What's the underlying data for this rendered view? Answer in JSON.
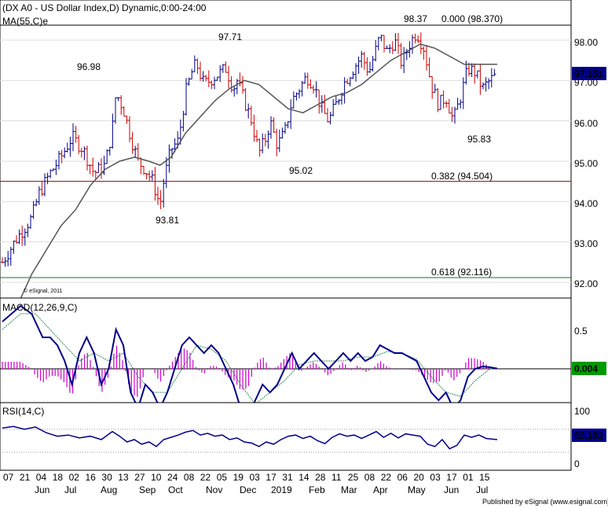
{
  "header": {
    "title": "(DX A0 - US Dollar Index,D) Dynamic,0:00-24:00",
    "ma_label": "MA(55,C)e",
    "esignal_mark": "© eSignal, 2011",
    "publisher": "Published by eSignal (www.esignal.com)"
  },
  "chart_data": [
    {
      "type": "ohlc",
      "title": "(DX A0 - US Dollar Index,D) Dynamic,0:00-24:00",
      "ylim": [
        91.6,
        99.0
      ],
      "yticks": [
        "98.00",
        "97.00",
        "96.00",
        "95.00",
        "94.00",
        "93.00",
        "92.00"
      ],
      "last_price": "97.151",
      "annotations": [
        "96.98",
        "97.71",
        "98.37",
        "95.02",
        "93.81",
        "95.83"
      ],
      "fib_levels": [
        {
          "label": "0.000 (98.370)",
          "value": 98.37,
          "color": "#000000"
        },
        {
          "label": "0.382 (94.504)",
          "value": 94.504,
          "color": "#8b1a1a"
        },
        {
          "label": "0.618 (92.116)",
          "value": 92.116,
          "color": "#1a7a1a"
        }
      ],
      "ma_series": {
        "name": "MA(55,C)e",
        "color": "#555555"
      },
      "price_path": [
        [
          0,
          92.5
        ],
        [
          4,
          93.1
        ],
        [
          8,
          93.6
        ],
        [
          10,
          94.2
        ],
        [
          13,
          94.7
        ],
        [
          16,
          95.1
        ],
        [
          19,
          95.6
        ],
        [
          22,
          95.3
        ],
        [
          25,
          94.7
        ],
        [
          28,
          94.9
        ],
        [
          30,
          95.8
        ],
        [
          31,
          96.7
        ],
        [
          33,
          96.3
        ],
        [
          35,
          95.6
        ],
        [
          37,
          95.0
        ],
        [
          39,
          94.8
        ],
        [
          41,
          94.5
        ],
        [
          42,
          94.2
        ],
        [
          43,
          93.9
        ],
        [
          44,
          94.5
        ],
        [
          46,
          95.3
        ],
        [
          48,
          95.5
        ],
        [
          49,
          96.1
        ],
        [
          50,
          96.7
        ],
        [
          52,
          97.3
        ],
        [
          53,
          97.4
        ],
        [
          55,
          96.9
        ],
        [
          58,
          97.1
        ],
        [
          61,
          97.3
        ],
        [
          63,
          96.8
        ],
        [
          64,
          97.0
        ],
        [
          66,
          96.5
        ],
        [
          68,
          96.0
        ],
        [
          70,
          95.2
        ],
        [
          72,
          95.6
        ],
        [
          73,
          96.0
        ],
        [
          75,
          95.4
        ],
        [
          77,
          95.7
        ],
        [
          79,
          96.5
        ],
        [
          81,
          96.8
        ],
        [
          83,
          97.1
        ],
        [
          85,
          96.9
        ],
        [
          87,
          96.3
        ],
        [
          89,
          96.0
        ],
        [
          91,
          96.4
        ],
        [
          93,
          96.9
        ],
        [
          95,
          97.2
        ],
        [
          98,
          97.6
        ],
        [
          100,
          97.2
        ],
        [
          101,
          97.5
        ],
        [
          103,
          98.1
        ],
        [
          105,
          97.7
        ],
        [
          107,
          98.0
        ],
        [
          109,
          97.4
        ],
        [
          111,
          97.9
        ],
        [
          113,
          98.2
        ],
        [
          115,
          97.8
        ],
        [
          117,
          96.9
        ],
        [
          119,
          96.4
        ],
        [
          121,
          96.6
        ],
        [
          123,
          96.0
        ],
        [
          125,
          96.6
        ],
        [
          127,
          97.3
        ],
        [
          129,
          97.2
        ],
        [
          131,
          96.8
        ],
        [
          133,
          97.0
        ],
        [
          135,
          97.15
        ]
      ],
      "ma_path": [
        [
          5,
          91.6
        ],
        [
          8,
          92.2
        ],
        [
          12,
          92.8
        ],
        [
          16,
          93.4
        ],
        [
          20,
          93.8
        ],
        [
          24,
          94.4
        ],
        [
          28,
          94.8
        ],
        [
          32,
          95.0
        ],
        [
          36,
          95.1
        ],
        [
          40,
          95.0
        ],
        [
          43,
          94.9
        ],
        [
          46,
          95.1
        ],
        [
          50,
          95.7
        ],
        [
          54,
          96.1
        ],
        [
          58,
          96.5
        ],
        [
          62,
          96.8
        ],
        [
          66,
          97.0
        ],
        [
          70,
          96.9
        ],
        [
          74,
          96.6
        ],
        [
          78,
          96.3
        ],
        [
          82,
          96.2
        ],
        [
          86,
          96.4
        ],
        [
          90,
          96.6
        ],
        [
          94,
          96.7
        ],
        [
          98,
          96.9
        ],
        [
          102,
          97.2
        ],
        [
          106,
          97.5
        ],
        [
          110,
          97.7
        ],
        [
          114,
          97.9
        ],
        [
          118,
          97.8
        ],
        [
          122,
          97.6
        ],
        [
          126,
          97.4
        ],
        [
          130,
          97.4
        ],
        [
          135,
          97.4
        ]
      ]
    },
    {
      "type": "line",
      "title": "MACD(12,26,9,C)",
      "ylim": [
        -0.85,
        1.2
      ],
      "yticks": [
        "0.5"
      ],
      "last_value": "0.004",
      "series": [
        {
          "name": "MACD",
          "color": "#00008b"
        },
        {
          "name": "Signal",
          "color": "#2e8b57"
        },
        {
          "name": "Histogram",
          "color": "#cc00cc"
        }
      ],
      "macd_path": [
        [
          0,
          0.6
        ],
        [
          5,
          0.8
        ],
        [
          8,
          0.7
        ],
        [
          11,
          0.4
        ],
        [
          13,
          0.4
        ],
        [
          15,
          0.3
        ],
        [
          17,
          0.1
        ],
        [
          19,
          -0.2
        ],
        [
          21,
          0.2
        ],
        [
          23,
          0.4
        ],
        [
          25,
          0.2
        ],
        [
          27,
          -0.2
        ],
        [
          29,
          0.0
        ],
        [
          31,
          0.5
        ],
        [
          33,
          0.3
        ],
        [
          35,
          -0.3
        ],
        [
          37,
          -0.5
        ],
        [
          39,
          -0.2
        ],
        [
          41,
          -0.3
        ],
        [
          43,
          -0.5
        ],
        [
          45,
          -0.3
        ],
        [
          47,
          0.0
        ],
        [
          49,
          0.3
        ],
        [
          51,
          0.4
        ],
        [
          53,
          0.3
        ],
        [
          55,
          0.2
        ],
        [
          57,
          0.3
        ],
        [
          59,
          0.2
        ],
        [
          61,
          0.0
        ],
        [
          63,
          -0.2
        ],
        [
          65,
          -0.5
        ],
        [
          67,
          -0.6
        ],
        [
          69,
          -0.4
        ],
        [
          71,
          -0.2
        ],
        [
          73,
          -0.3
        ],
        [
          75,
          -0.2
        ],
        [
          77,
          0.0
        ],
        [
          79,
          0.2
        ],
        [
          81,
          0.0
        ],
        [
          83,
          0.1
        ],
        [
          85,
          0.2
        ],
        [
          87,
          0.1
        ],
        [
          89,
          0.0
        ],
        [
          91,
          0.1
        ],
        [
          93,
          0.2
        ],
        [
          95,
          0.1
        ],
        [
          97,
          0.2
        ],
        [
          99,
          0.1
        ],
        [
          101,
          0.15
        ],
        [
          103,
          0.3
        ],
        [
          105,
          0.25
        ],
        [
          107,
          0.2
        ],
        [
          109,
          0.2
        ],
        [
          111,
          0.15
        ],
        [
          113,
          0.1
        ],
        [
          115,
          -0.1
        ],
        [
          117,
          -0.3
        ],
        [
          119,
          -0.4
        ],
        [
          121,
          -0.3
        ],
        [
          123,
          -0.5
        ],
        [
          125,
          -0.4
        ],
        [
          127,
          -0.1
        ],
        [
          129,
          0.0
        ],
        [
          131,
          0.03
        ],
        [
          133,
          0.02
        ],
        [
          135,
          0.004
        ]
      ],
      "signal_path": [
        [
          0,
          0.5
        ],
        [
          5,
          0.7
        ],
        [
          9,
          0.7
        ],
        [
          13,
          0.5
        ],
        [
          17,
          0.3
        ],
        [
          21,
          0.1
        ],
        [
          25,
          0.2
        ],
        [
          29,
          0.1
        ],
        [
          33,
          0.2
        ],
        [
          37,
          -0.1
        ],
        [
          41,
          -0.3
        ],
        [
          45,
          -0.3
        ],
        [
          49,
          0.0
        ],
        [
          53,
          0.3
        ],
        [
          57,
          0.25
        ],
        [
          61,
          0.1
        ],
        [
          65,
          -0.2
        ],
        [
          69,
          -0.45
        ],
        [
          73,
          -0.3
        ],
        [
          77,
          -0.15
        ],
        [
          81,
          0.05
        ],
        [
          85,
          0.1
        ],
        [
          89,
          0.1
        ],
        [
          93,
          0.1
        ],
        [
          97,
          0.15
        ],
        [
          101,
          0.15
        ],
        [
          105,
          0.22
        ],
        [
          109,
          0.2
        ],
        [
          113,
          0.12
        ],
        [
          117,
          -0.1
        ],
        [
          121,
          -0.3
        ],
        [
          125,
          -0.35
        ],
        [
          129,
          -0.15
        ],
        [
          133,
          0.0
        ],
        [
          135,
          0.01
        ]
      ]
    },
    {
      "type": "line",
      "title": "RSI(14,C)",
      "ylim": [
        -10,
        110
      ],
      "yticks": [
        "100",
        "0"
      ],
      "last_value": "52.192",
      "series": [
        {
          "name": "RSI",
          "color": "#00008b"
        }
      ],
      "levels": [
        70,
        30
      ],
      "rsi_path": [
        [
          0,
          72
        ],
        [
          3,
          75
        ],
        [
          6,
          70
        ],
        [
          9,
          74
        ],
        [
          12,
          64
        ],
        [
          15,
          58
        ],
        [
          18,
          60
        ],
        [
          21,
          55
        ],
        [
          24,
          58
        ],
        [
          27,
          52
        ],
        [
          30,
          66
        ],
        [
          32,
          58
        ],
        [
          34,
          48
        ],
        [
          36,
          52
        ],
        [
          38,
          44
        ],
        [
          40,
          48
        ],
        [
          42,
          40
        ],
        [
          44,
          52
        ],
        [
          46,
          56
        ],
        [
          48,
          60
        ],
        [
          50,
          65
        ],
        [
          52,
          68
        ],
        [
          54,
          60
        ],
        [
          56,
          63
        ],
        [
          58,
          58
        ],
        [
          60,
          60
        ],
        [
          62,
          52
        ],
        [
          64,
          55
        ],
        [
          66,
          48
        ],
        [
          68,
          46
        ],
        [
          70,
          40
        ],
        [
          72,
          48
        ],
        [
          74,
          44
        ],
        [
          76,
          52
        ],
        [
          78,
          58
        ],
        [
          80,
          60
        ],
        [
          82,
          54
        ],
        [
          84,
          58
        ],
        [
          86,
          50
        ],
        [
          88,
          45
        ],
        [
          90,
          56
        ],
        [
          92,
          62
        ],
        [
          94,
          58
        ],
        [
          96,
          60
        ],
        [
          98,
          54
        ],
        [
          100,
          60
        ],
        [
          102,
          66
        ],
        [
          104,
          56
        ],
        [
          106,
          63
        ],
        [
          108,
          55
        ],
        [
          110,
          62
        ],
        [
          112,
          60
        ],
        [
          114,
          58
        ],
        [
          116,
          44
        ],
        [
          118,
          40
        ],
        [
          120,
          52
        ],
        [
          122,
          36
        ],
        [
          124,
          42
        ],
        [
          126,
          60
        ],
        [
          128,
          56
        ],
        [
          130,
          60
        ],
        [
          132,
          54
        ],
        [
          135,
          52
        ]
      ]
    }
  ],
  "xaxis": {
    "day_ticks": [
      "07",
      "21",
      "04",
      "18",
      "02",
      "16",
      "30",
      "13",
      "27",
      "10",
      "24",
      "08",
      "22",
      "05",
      "19",
      "03",
      "17",
      "31",
      "14",
      "28",
      "11",
      "25",
      "08",
      "22",
      "06",
      "20",
      "03",
      "17",
      "01",
      "15"
    ],
    "month_labels": [
      "Jun",
      "Jul",
      "Aug",
      "Sep",
      "Oct",
      "Nov",
      "Dec",
      "2019",
      "Feb",
      "Mar",
      "Apr",
      "May",
      "Jun",
      "Jul"
    ]
  }
}
